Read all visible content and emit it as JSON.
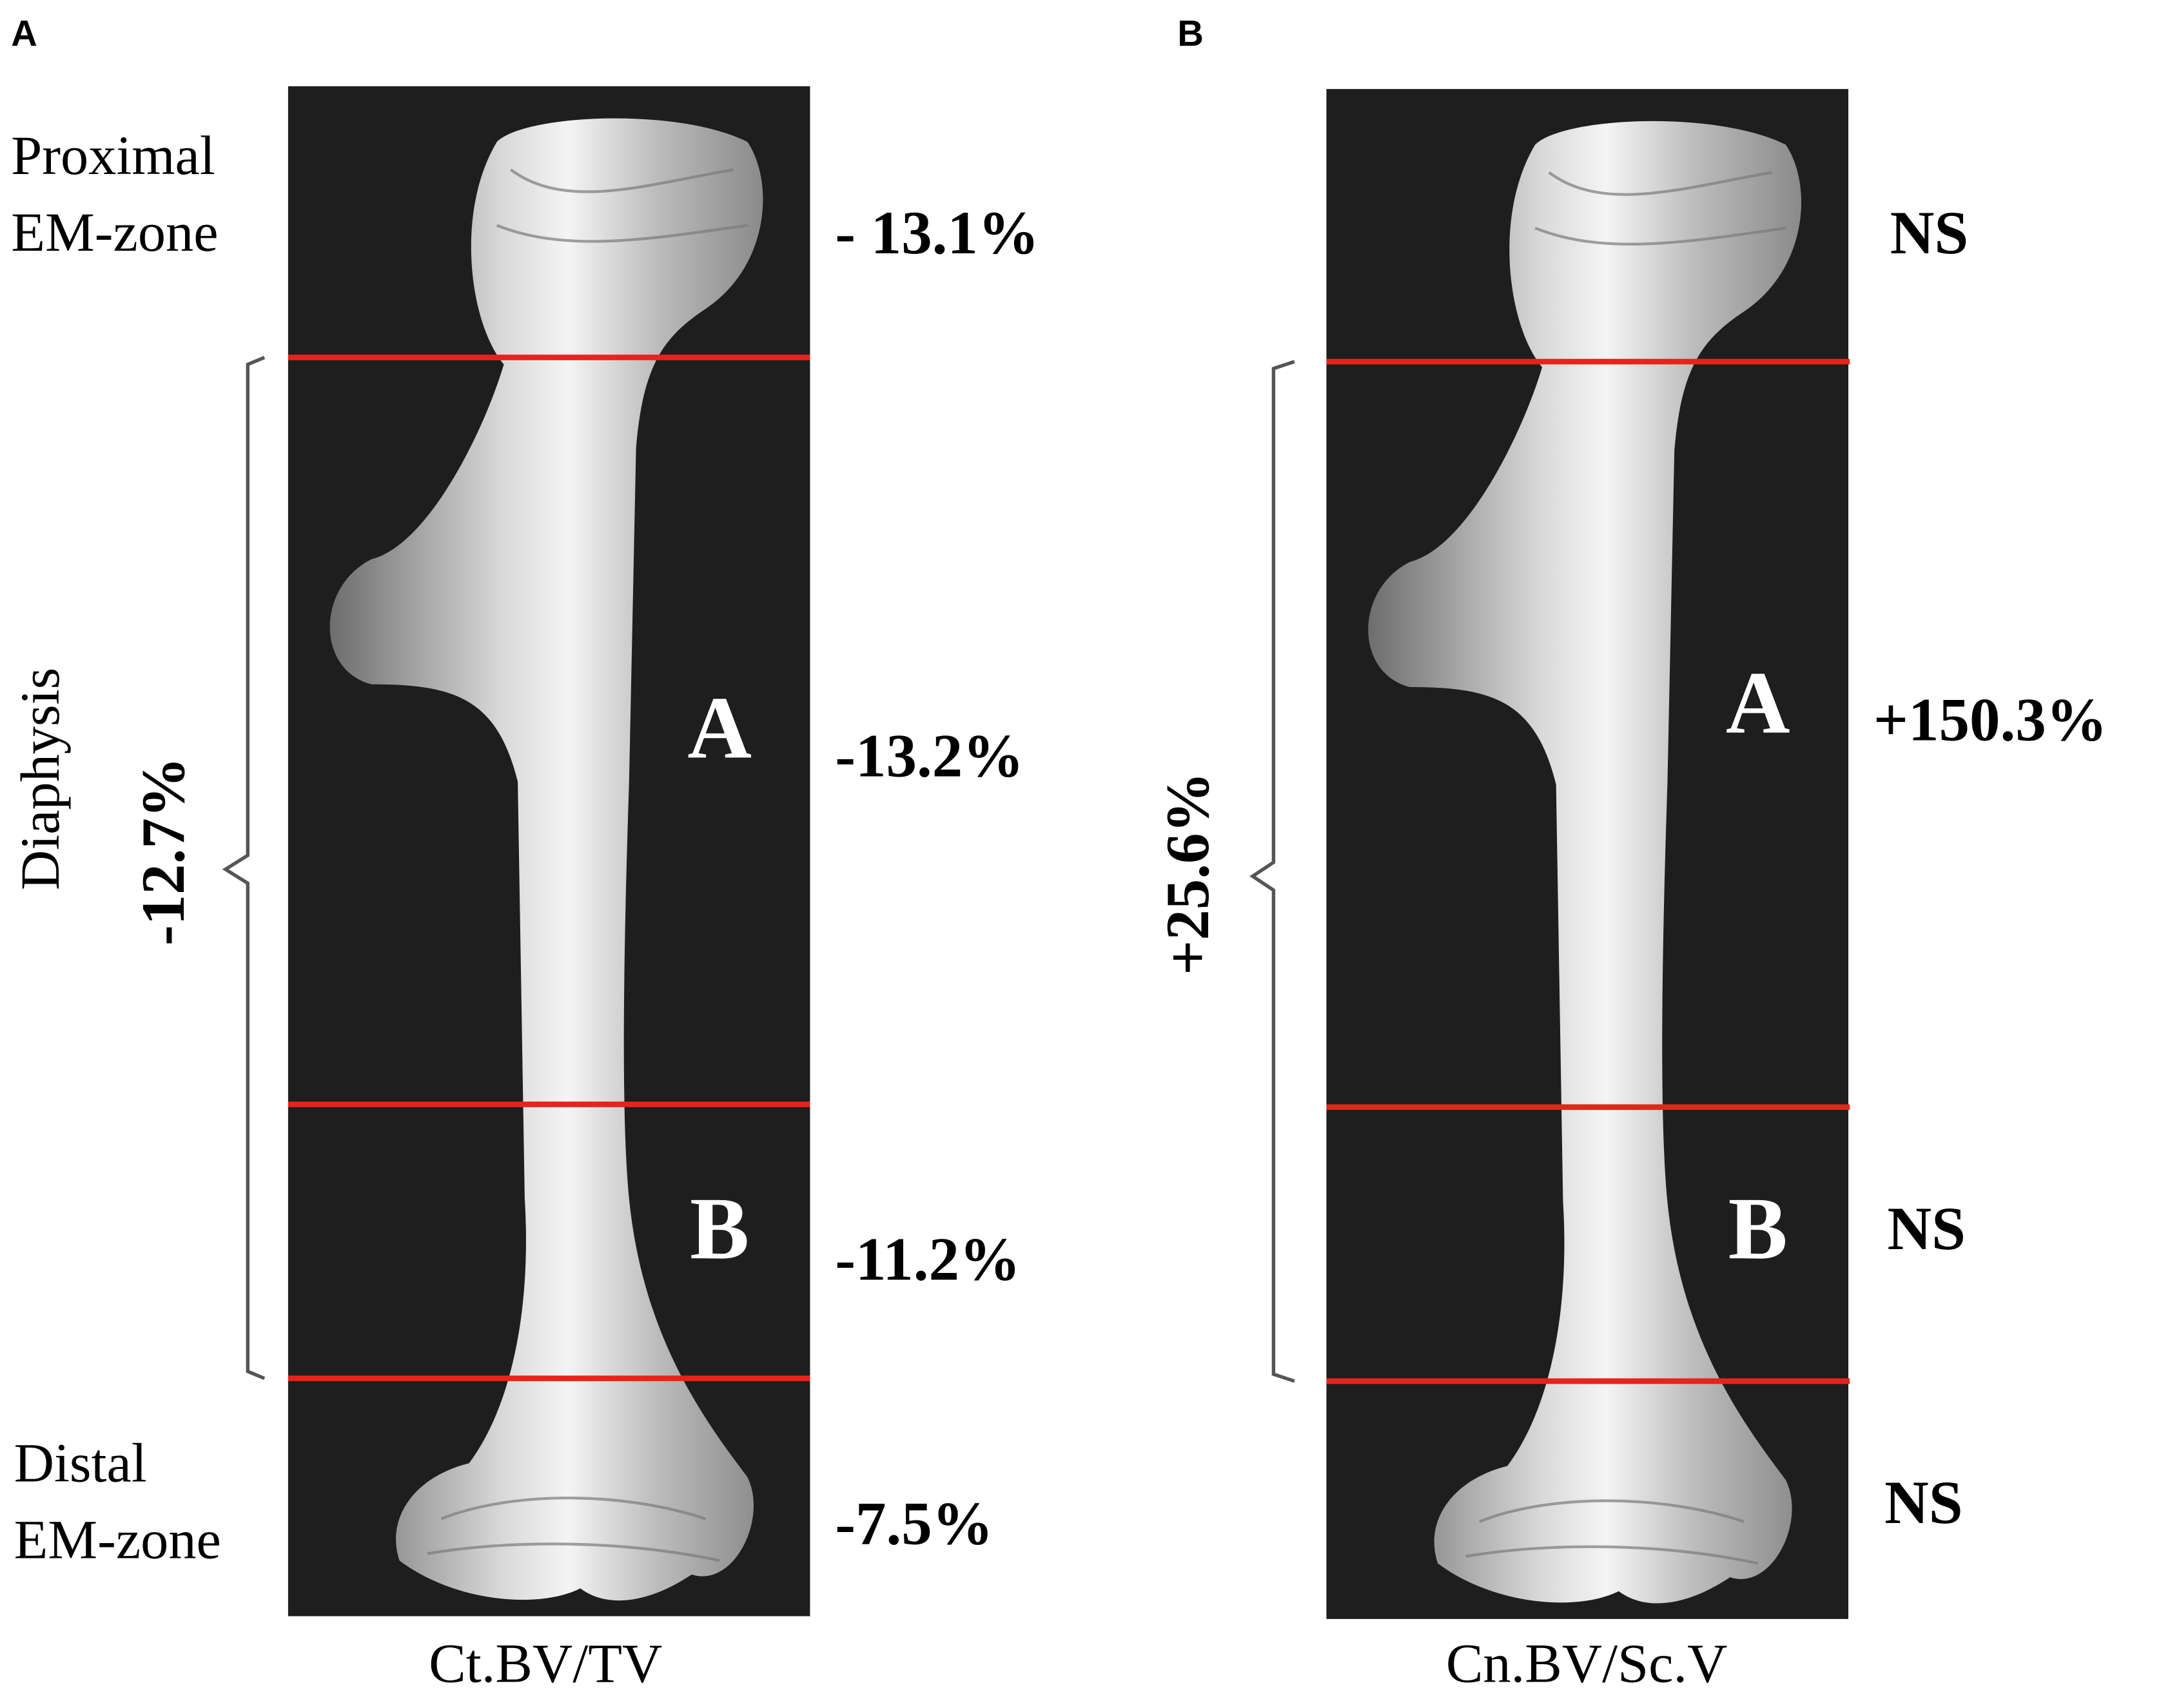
{
  "panels": [
    {
      "panel_label": "A",
      "proximal_label": [
        "Proximal",
        "EM-zone"
      ],
      "diaphysis_label": "Diaphysis",
      "diaphysis_value": "-12.7%",
      "region_labels": [
        "A",
        "B"
      ],
      "values": [
        "- 13.1%",
        "-13.2%",
        "-11.2%",
        "-7.5%"
      ],
      "distal_label": [
        "Distal",
        "EM-zone"
      ],
      "measure": "Ct.BV/TV"
    },
    {
      "panel_label": "B",
      "diaphysis_value": "+25.6%",
      "region_labels": [
        "A",
        "B"
      ],
      "values": [
        "NS",
        "+150.3%",
        "NS",
        "NS"
      ],
      "measure": "Cn.BV/Sc.V"
    }
  ]
}
